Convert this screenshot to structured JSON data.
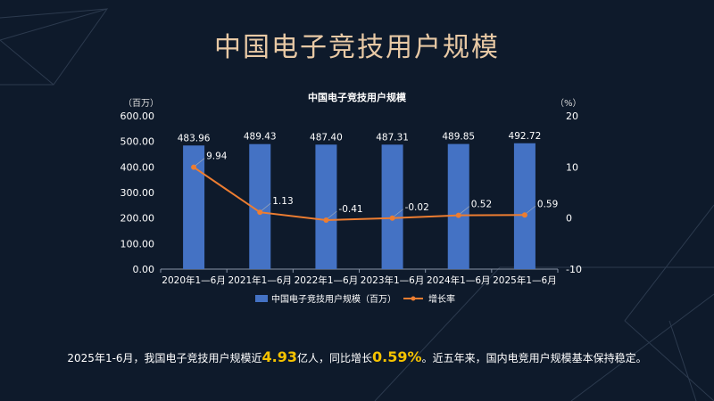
{
  "page": {
    "title": "中国电子竞技用户规模"
  },
  "chart_data": {
    "type": "bar+line",
    "title": "中国电子竞技用户规模",
    "categories": [
      "2020年1—6月",
      "2021年1—6月",
      "2022年1—6月",
      "2023年1—6月",
      "2024年1—6月",
      "2025年1—6月"
    ],
    "series": [
      {
        "name": "中国电子竞技用户规模（百万）",
        "type": "bar",
        "axis": "left",
        "values": [
          483.96,
          489.43,
          487.4,
          487.31,
          489.85,
          492.72
        ],
        "labels": [
          "483.96",
          "489.43",
          "487.40",
          "487.31",
          "489.85",
          "492.72"
        ]
      },
      {
        "name": "增长率",
        "type": "line",
        "axis": "right",
        "values": [
          9.94,
          1.13,
          -0.41,
          -0.02,
          0.52,
          0.59
        ],
        "labels": [
          "9.94",
          "1.13",
          "-0.41",
          "-0.02",
          "0.52",
          "0.59"
        ]
      }
    ],
    "y_left": {
      "unit": "（百万）",
      "range": [
        0,
        600
      ],
      "ticks": [
        "0.00",
        "100.00",
        "200.00",
        "300.00",
        "400.00",
        "500.00",
        "600.00"
      ]
    },
    "y_right": {
      "unit": "（%）",
      "range": [
        -10,
        20
      ],
      "ticks": [
        "-10",
        "0",
        "10",
        "20"
      ]
    },
    "legend_position": "bottom",
    "grid": false,
    "colors": {
      "bar": "#4472c4",
      "line": "#ed7d31"
    }
  },
  "footer": {
    "part1": "2025年1-6月，我国电子竞技用户规模近",
    "value1": "4.93",
    "part2": "亿人，同比增长",
    "value2": "0.59%",
    "part3": "。近五年来，国内电竞用户规模基本保持稳定。"
  }
}
